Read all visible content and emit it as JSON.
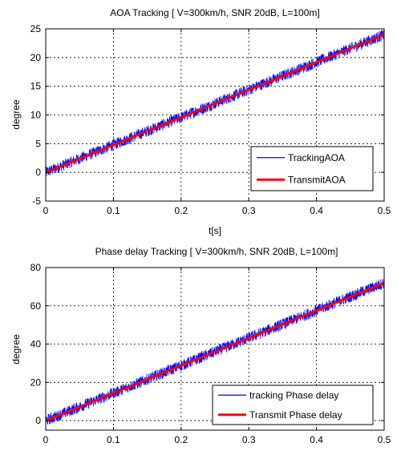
{
  "chart_data": [
    {
      "type": "line",
      "title": "AOA Tracking [ V=300km/h, SNR 20dB, L=100m]",
      "xlabel": "t[s]",
      "ylabel": "degree",
      "xlim": [
        0,
        0.5
      ],
      "ylim": [
        -5,
        25
      ],
      "xticks": [
        0,
        0.1,
        0.2,
        0.3,
        0.4,
        0.5
      ],
      "xtick_labels": [
        "0",
        "0.1",
        "0.2",
        "0.3",
        "0.4",
        "0.5"
      ],
      "yticks": [
        -5,
        0,
        5,
        10,
        15,
        20,
        25
      ],
      "ytick_labels": [
        "-5",
        "0",
        "5",
        "10",
        "15",
        "20",
        "25"
      ],
      "grid": true,
      "grid_style": "dotted",
      "legend_position": "bottom-right",
      "series": [
        {
          "name": "TrackingAOA",
          "color": "#0000ff",
          "style": "noisy",
          "noise_amplitude": 1.0,
          "x": [
            0,
            0.5
          ],
          "y": [
            0,
            24
          ]
        },
        {
          "name": "TransmitAOA",
          "color": "#ff0000",
          "style": "thick",
          "x": [
            0,
            0.5
          ],
          "y": [
            0,
            24
          ]
        }
      ]
    },
    {
      "type": "line",
      "title": "Phase delay Tracking  [ V=300km/h, SNR 20dB, L=100m]",
      "xlabel": "",
      "ylabel": "degree",
      "xlim": [
        0,
        0.5
      ],
      "ylim": [
        -5,
        80
      ],
      "xticks": [
        0,
        0.1,
        0.2,
        0.3,
        0.4,
        0.5
      ],
      "xtick_labels": [
        "0",
        "0.1",
        "0.2",
        "0.3",
        "0.4",
        "0.5"
      ],
      "yticks": [
        0,
        20,
        40,
        60,
        80
      ],
      "ytick_labels": [
        "0",
        "20",
        "40",
        "60",
        "80"
      ],
      "grid": true,
      "grid_style": "dotted",
      "legend_position": "bottom-right",
      "series": [
        {
          "name": "tracking Phase delay",
          "color": "#0000ff",
          "style": "noisy",
          "noise_amplitude": 3.0,
          "x": [
            0,
            0.5
          ],
          "y": [
            0,
            72
          ]
        },
        {
          "name": "Transmit Phase delay",
          "color": "#ff0000",
          "style": "thick",
          "x": [
            0,
            0.5
          ],
          "y": [
            0,
            72
          ]
        }
      ]
    }
  ]
}
